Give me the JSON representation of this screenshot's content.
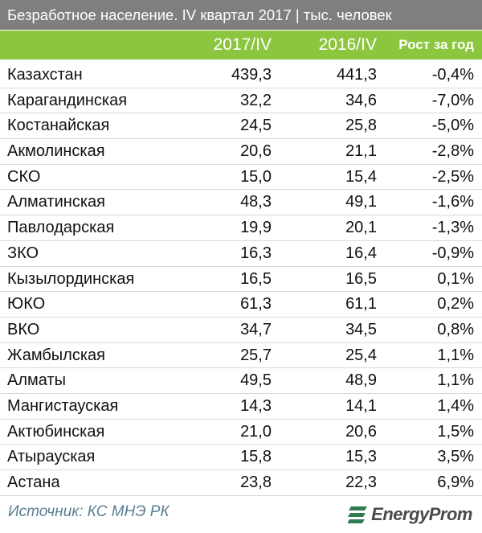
{
  "chart_data": {
    "type": "table",
    "title": "Безработное население. IV квартал 2017 | тыс. человек",
    "columns": [
      "2017/IV",
      "2016/IV",
      "Рост за год"
    ],
    "rows": [
      {
        "name": "Казахстан",
        "v2017": "439,3",
        "v2016": "441,3",
        "growth": "-0,4%"
      },
      {
        "name": "Карагандинская",
        "v2017": "32,2",
        "v2016": "34,6",
        "growth": "-7,0%"
      },
      {
        "name": "Костанайская",
        "v2017": "24,5",
        "v2016": "25,8",
        "growth": "-5,0%"
      },
      {
        "name": "Акмолинская",
        "v2017": "20,6",
        "v2016": "21,1",
        "growth": "-2,8%"
      },
      {
        "name": "СКО",
        "v2017": "15,0",
        "v2016": "15,4",
        "growth": "-2,5%"
      },
      {
        "name": "Алматинская",
        "v2017": "48,3",
        "v2016": "49,1",
        "growth": "-1,6%"
      },
      {
        "name": "Павлодарская",
        "v2017": "19,9",
        "v2016": "20,1",
        "growth": "-1,3%"
      },
      {
        "name": "ЗКО",
        "v2017": "16,3",
        "v2016": "16,4",
        "growth": "-0,9%"
      },
      {
        "name": "Кызылординская",
        "v2017": "16,5",
        "v2016": "16,5",
        "growth": "0,1%"
      },
      {
        "name": "ЮКО",
        "v2017": "61,3",
        "v2016": "61,1",
        "growth": "0,2%"
      },
      {
        "name": "ВКО",
        "v2017": "34,7",
        "v2016": "34,5",
        "growth": "0,8%"
      },
      {
        "name": "Жамбылская",
        "v2017": "25,7",
        "v2016": "25,4",
        "growth": "1,1%"
      },
      {
        "name": "Алматы",
        "v2017": "49,5",
        "v2016": "48,9",
        "growth": "1,1%"
      },
      {
        "name": "Мангистауская",
        "v2017": "14,3",
        "v2016": "14,1",
        "growth": "1,4%"
      },
      {
        "name": "Актюбинская",
        "v2017": "21,0",
        "v2016": "20,6",
        "growth": "1,5%"
      },
      {
        "name": "Атырауская",
        "v2017": "15,8",
        "v2016": "15,3",
        "growth": "3,5%"
      },
      {
        "name": "Астана",
        "v2017": "23,8",
        "v2016": "22,3",
        "growth": "6,9%"
      }
    ]
  },
  "footer": {
    "source": "Источник: КС МНЭ РК",
    "logo_text": "EnergyProm"
  },
  "colors": {
    "title_bg": "#7f7f7f",
    "header_bg": "#8cc63f",
    "source_text": "#5b7f95"
  }
}
